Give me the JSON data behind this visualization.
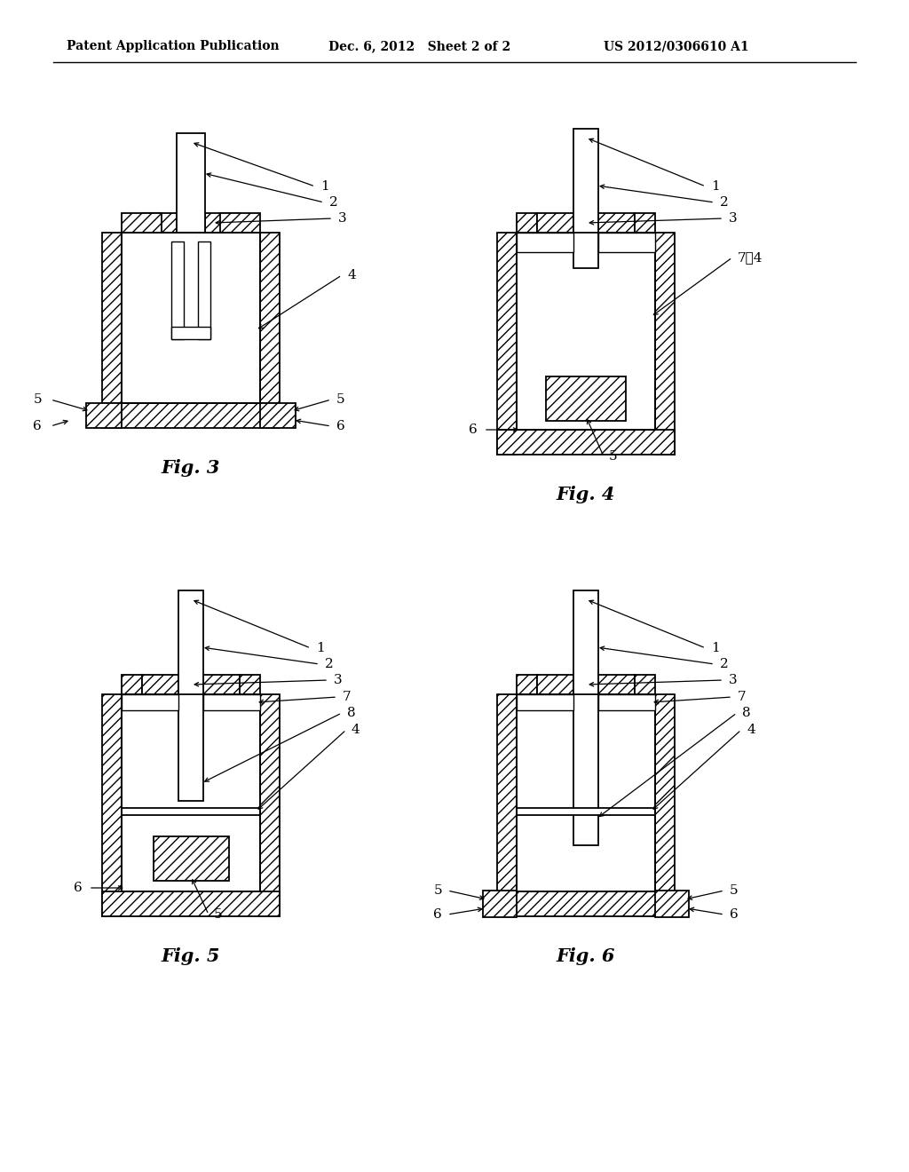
{
  "header_left": "Patent Application Publication",
  "header_mid": "Dec. 6, 2012   Sheet 2 of 2",
  "header_right": "US 2012/0306610 A1",
  "bg_color": "#ffffff",
  "line_color": "#000000"
}
